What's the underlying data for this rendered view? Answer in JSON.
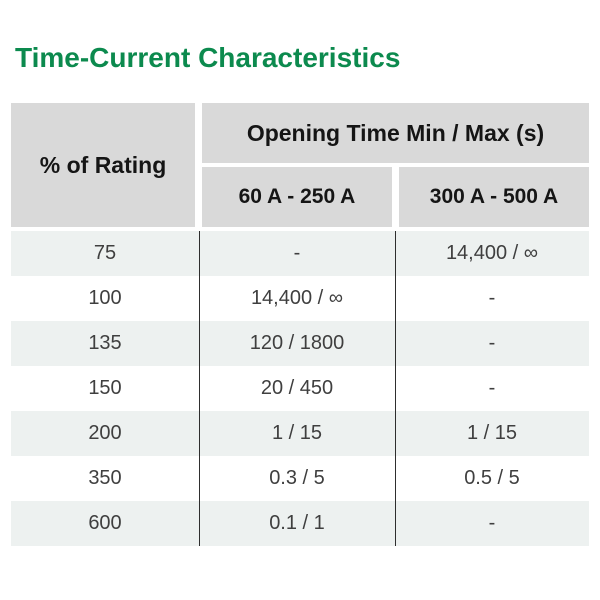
{
  "title": "Time-Current Characteristics",
  "colors": {
    "title_green": "#0c8a4e",
    "header_bg": "#d9d9d9",
    "row_alt_bg": "#edf1f0",
    "row_bg": "#ffffff",
    "column_divider": "#2e2e2e",
    "body_text": "#3f3f3f",
    "header_text": "#151515"
  },
  "table": {
    "rating_header": "% of Rating",
    "group_header": "Opening Time Min / Max (s)",
    "col_headers": [
      "60 A - 250 A",
      "300 A - 500 A"
    ],
    "rows": [
      {
        "rating": "75",
        "c1": "-",
        "c2": "14,400 / ∞"
      },
      {
        "rating": "100",
        "c1": "14,400 / ∞",
        "c2": "-"
      },
      {
        "rating": "135",
        "c1": "120 / 1800",
        "c2": "-"
      },
      {
        "rating": "150",
        "c1": "20 / 450",
        "c2": "-"
      },
      {
        "rating": "200",
        "c1": "1 / 15",
        "c2": "1 / 15"
      },
      {
        "rating": "350",
        "c1": "0.3 / 5",
        "c2": "0.5 / 5"
      },
      {
        "rating": "600",
        "c1": "0.1 / 1",
        "c2": "-"
      }
    ]
  }
}
